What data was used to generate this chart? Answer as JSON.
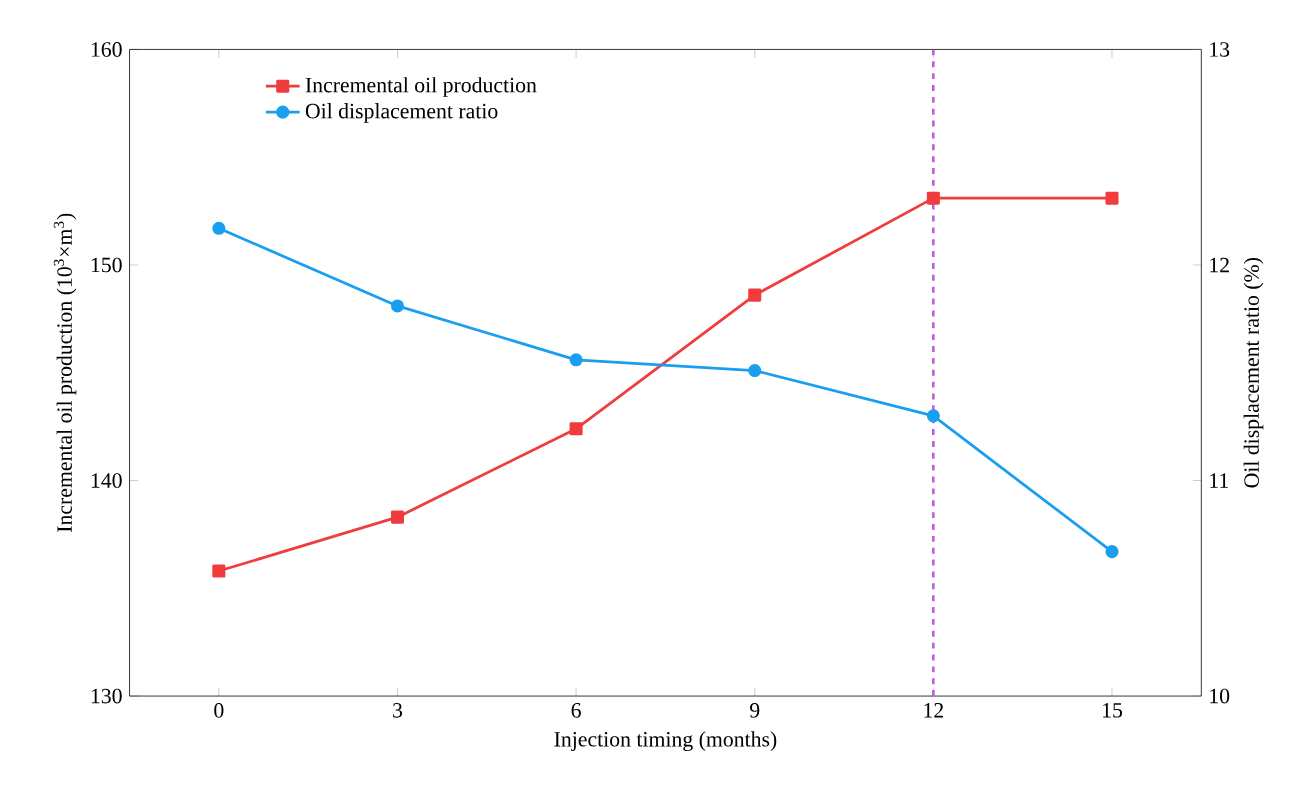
{
  "chart_data": {
    "type": "line",
    "xlabel": "Injection timing (months)",
    "ylabel": "Incremental oil production (10$^{3}$×m$^{3}$)",
    "y2label": "Oil displacement ratio (%)",
    "x": [
      0,
      3,
      6,
      9,
      12,
      15
    ],
    "series": [
      {
        "name": "Incremental oil production",
        "color": "#f03c3c",
        "marker": "square",
        "axis": "y",
        "values": [
          135.8,
          138.3,
          142.4,
          148.6,
          153.1,
          153.1
        ]
      },
      {
        "name": "Oil displacement ratio",
        "color": "#1a9ff0",
        "marker": "circle",
        "axis": "y2",
        "values": [
          12.17,
          11.81,
          11.56,
          11.51,
          11.3,
          10.67
        ]
      }
    ],
    "xlim": [
      -1.5,
      16.5
    ],
    "xticks": [
      0,
      3,
      6,
      9,
      12,
      15
    ],
    "ylim": [
      130,
      160
    ],
    "yticks": [
      130,
      140,
      150,
      160
    ],
    "y2lim": [
      10,
      13
    ],
    "y2ticks": [
      10,
      11,
      12,
      13
    ],
    "ref_lines": [
      {
        "axis": "x",
        "value": 12,
        "color": "#c060e0",
        "line_style": "dashed"
      }
    ],
    "legend": "top left",
    "grid": false
  }
}
